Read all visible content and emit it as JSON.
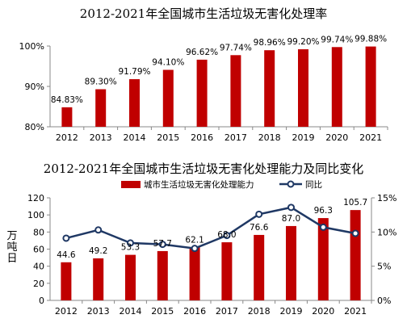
{
  "chart_data": [
    {
      "type": "bar",
      "title": "2012-2021年全国城市生活垃圾无害化处理率",
      "categories": [
        "2012",
        "2013",
        "2014",
        "2015",
        "2016",
        "2017",
        "2018",
        "2019",
        "2020",
        "2021"
      ],
      "values": [
        84.83,
        89.3,
        91.79,
        94.1,
        96.62,
        97.74,
        98.96,
        99.2,
        99.74,
        99.88
      ],
      "data_labels": [
        "84.83%",
        "89.30%",
        "91.79%",
        "94.10%",
        "96.62%",
        "97.74%",
        "98.96%",
        "99.20%",
        "99.74%",
        "99.88%"
      ],
      "yticks": [
        "80%",
        "90%",
        "100%"
      ],
      "ylim": [
        80,
        100
      ],
      "grid": false,
      "color": "#c00000"
    },
    {
      "type": "bar+line",
      "title": "2012-2021年全国城市生活垃圾无害化处理能力及同比变化",
      "categories": [
        "2012",
        "2013",
        "2014",
        "2015",
        "2016",
        "2017",
        "2018",
        "2019",
        "2020",
        "2021"
      ],
      "ylabel": "万吨日",
      "legend_position": "top",
      "series": [
        {
          "name": "城市生活垃圾无害化处理能力",
          "type": "bar",
          "axis": "left",
          "values": [
            44.6,
            49.2,
            53.3,
            57.7,
            62.1,
            68.0,
            76.6,
            87.0,
            96.3,
            105.7
          ],
          "data_labels": [
            "44.6",
            "49.2",
            "53.3",
            "57.7",
            "62.1",
            "68.0",
            "76.6",
            "87.0",
            "96.3",
            "105.7"
          ],
          "color": "#c00000"
        },
        {
          "name": "同比",
          "type": "line",
          "axis": "right",
          "values": [
            9.1,
            10.3,
            8.4,
            8.2,
            7.6,
            9.5,
            12.6,
            13.6,
            10.7,
            9.8
          ],
          "color": "#1f3864"
        }
      ],
      "left_yticks": [
        "0",
        "20",
        "40",
        "60",
        "80",
        "100",
        "120"
      ],
      "left_ylim": [
        0,
        120
      ],
      "right_yticks": [
        "0%",
        "5%",
        "10%",
        "15%"
      ],
      "right_ylim": [
        0,
        15
      ],
      "grid": false
    }
  ]
}
